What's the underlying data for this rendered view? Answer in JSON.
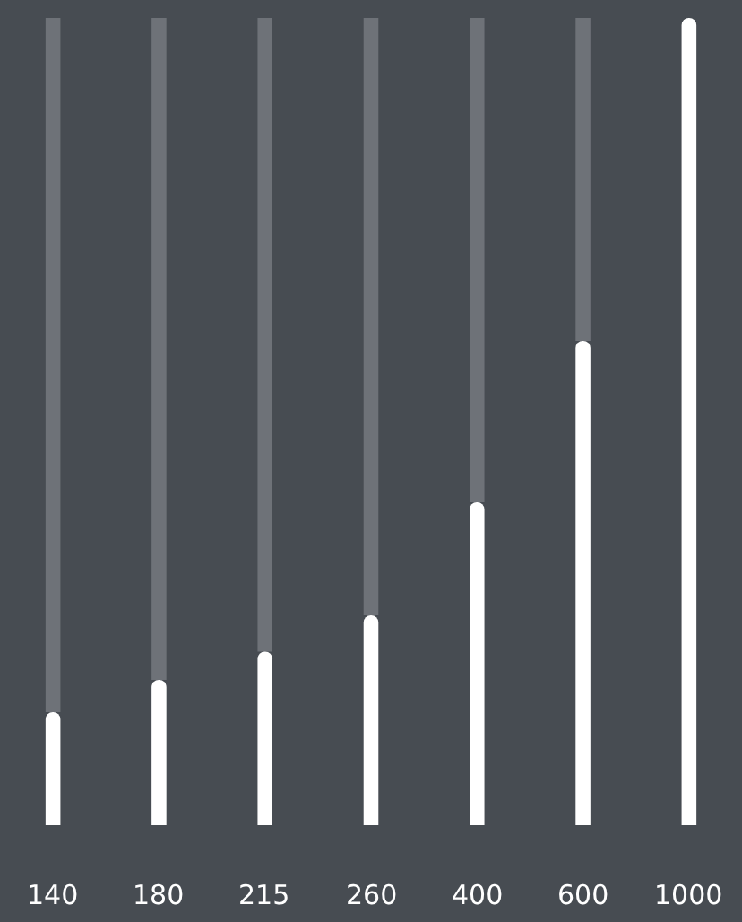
{
  "chart_data": {
    "type": "bar",
    "categories": [
      null,
      null,
      null,
      null,
      null,
      null,
      null
    ],
    "series": [
      {
        "color": "#ffffff",
        "values": [
          140,
          180,
          215,
          260,
          400,
          600,
          1000
        ]
      }
    ],
    "data_labels": true,
    "tick_labels": false
  }
}
